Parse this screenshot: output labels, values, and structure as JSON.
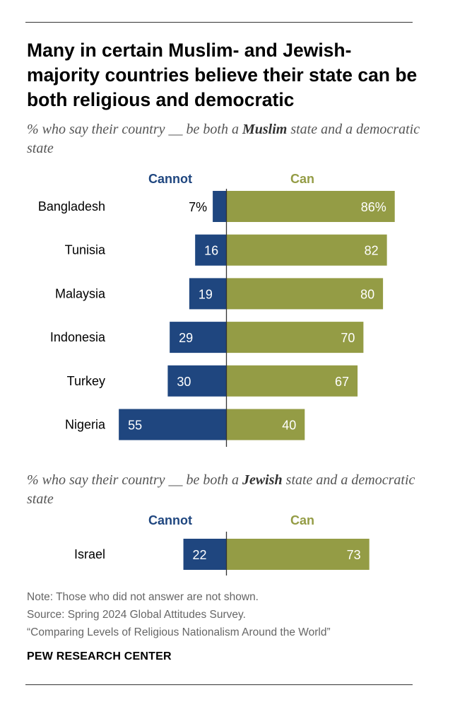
{
  "title": "Many in certain Muslim- and Jewish-majority countries believe their state can be both religious and democratic",
  "footer": {
    "note": "Note: Those who did not answer are not shown.",
    "source": "Source: Spring 2024 Global Attitudes Survey.",
    "report": "“Comparing Levels of Religious Nationalism Around the World”",
    "brand": "PEW RESEARCH CENTER"
  },
  "colors": {
    "cannot": "#1f467f",
    "can": "#949c45",
    "axis": "#333333"
  },
  "chart_data": [
    {
      "type": "bar",
      "orientation": "diverging-horizontal",
      "subtitle_before": "% who say their country __ be both a ",
      "subtitle_bold": "Muslim",
      "subtitle_after": " state and a democratic state",
      "categories": [
        "Bangladesh",
        "Tunisia",
        "Malaysia",
        "Indonesia",
        "Turkey",
        "Nigeria"
      ],
      "series": [
        {
          "name": "Cannot",
          "values": [
            7,
            16,
            19,
            29,
            30,
            55
          ],
          "labels": [
            "7%",
            "16",
            "19",
            "29",
            "30",
            "55"
          ]
        },
        {
          "name": "Can",
          "values": [
            86,
            82,
            80,
            70,
            67,
            40
          ],
          "labels": [
            "86%",
            "82",
            "80",
            "70",
            "67",
            "40"
          ]
        }
      ],
      "xlim": [
        -55,
        86
      ]
    },
    {
      "type": "bar",
      "orientation": "diverging-horizontal",
      "subtitle_before": "% who say their country __ be both a ",
      "subtitle_bold": "Jewish",
      "subtitle_after": " state and a democratic state",
      "categories": [
        "Israel"
      ],
      "series": [
        {
          "name": "Cannot",
          "values": [
            22
          ],
          "labels": [
            "22"
          ]
        },
        {
          "name": "Can",
          "values": [
            73
          ],
          "labels": [
            "73"
          ]
        }
      ],
      "xlim": [
        -55,
        86
      ]
    }
  ]
}
